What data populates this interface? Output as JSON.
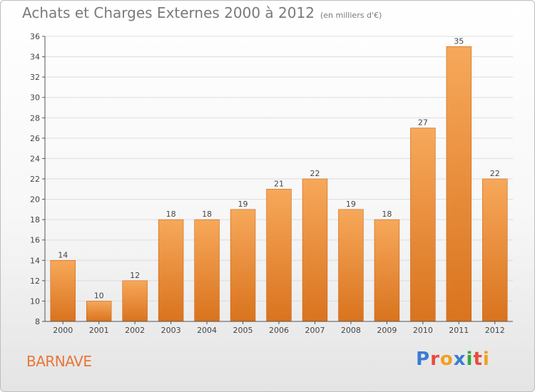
{
  "header": {
    "title": "Achats et Charges Externes 2000 à 2012",
    "unit_note": "(en milliers d'€)"
  },
  "footer": {
    "commune": "BARNAVE",
    "logo_text": "Proxiti",
    "logo_colors": [
      "#3a7bd5",
      "#e84c3d",
      "#f0a020",
      "#3a7bd5",
      "#2eaa3c",
      "#e84c3d",
      "#f0a020"
    ]
  },
  "colors": {
    "bar_light": "#f7a85a",
    "bar_dark": "#d9731e",
    "bar_edge": "#c8651a",
    "grid": "#dcdcdc",
    "axis": "#555555",
    "text": "#444444"
  },
  "chart_data": {
    "type": "bar",
    "categories": [
      "2000",
      "2001",
      "2002",
      "2003",
      "2004",
      "2005",
      "2006",
      "2007",
      "2008",
      "2009",
      "2010",
      "2011",
      "2012"
    ],
    "values": [
      14,
      10,
      12,
      18,
      18,
      19,
      21,
      22,
      19,
      18,
      27,
      35,
      22
    ],
    "title": "Achats et Charges Externes 2000 à 2012",
    "xlabel": "",
    "ylabel": "",
    "ylim": [
      8,
      36
    ],
    "yticks": [
      8,
      10,
      12,
      14,
      16,
      18,
      20,
      22,
      24,
      26,
      28,
      30,
      32,
      34,
      36
    ],
    "grid": true
  }
}
